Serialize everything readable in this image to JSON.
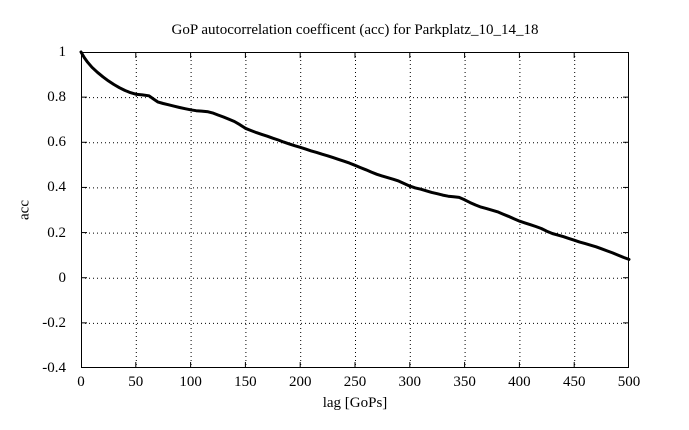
{
  "figure": {
    "title": "GoP autocorrelation coefficent (acc) for Parkplatz_10_14_18",
    "xlabel": "lag [GoPs]",
    "ylabel": "acc"
  },
  "chart_data": {
    "type": "line",
    "title": "GoP autocorrelation coefficent (acc) for Parkplatz_10_14_18",
    "xlabel": "lag [GoPs]",
    "ylabel": "acc",
    "xlim": [
      0,
      500
    ],
    "ylim": [
      -0.4,
      1
    ],
    "xticks": [
      0,
      50,
      100,
      150,
      200,
      250,
      300,
      350,
      400,
      450,
      500
    ],
    "xtick_labels": [
      "0",
      "50",
      "100",
      "150",
      "200",
      "250",
      "300",
      "350",
      "400",
      "450",
      "500"
    ],
    "yticks": [
      -0.4,
      -0.2,
      0,
      0.2,
      0.4,
      0.6,
      0.8,
      1
    ],
    "ytick_labels": [
      "-0.4",
      "-0.2",
      "0",
      "0.2",
      "0.4",
      "0.6",
      "0.8",
      "1"
    ],
    "grid": true,
    "grid_style": "dotted",
    "legend": "none",
    "background": "#ffffff",
    "line_color": "#000000",
    "line_width": 3,
    "series": [
      {
        "name": "acc",
        "points": [
          [
            0,
            1.0
          ],
          [
            3,
            0.975
          ],
          [
            6,
            0.955
          ],
          [
            10,
            0.932
          ],
          [
            15,
            0.91
          ],
          [
            20,
            0.89
          ],
          [
            25,
            0.872
          ],
          [
            30,
            0.856
          ],
          [
            35,
            0.842
          ],
          [
            40,
            0.83
          ],
          [
            45,
            0.82
          ],
          [
            50,
            0.813
          ],
          [
            56,
            0.81
          ],
          [
            62,
            0.806
          ],
          [
            66,
            0.792
          ],
          [
            70,
            0.779
          ],
          [
            75,
            0.772
          ],
          [
            80,
            0.766
          ],
          [
            85,
            0.76
          ],
          [
            90,
            0.754
          ],
          [
            95,
            0.749
          ],
          [
            100,
            0.744
          ],
          [
            105,
            0.74
          ],
          [
            110,
            0.738
          ],
          [
            116,
            0.735
          ],
          [
            120,
            0.73
          ],
          [
            125,
            0.721
          ],
          [
            130,
            0.712
          ],
          [
            135,
            0.702
          ],
          [
            140,
            0.692
          ],
          [
            145,
            0.678
          ],
          [
            150,
            0.662
          ],
          [
            155,
            0.652
          ],
          [
            160,
            0.643
          ],
          [
            165,
            0.635
          ],
          [
            170,
            0.627
          ],
          [
            175,
            0.618
          ],
          [
            180,
            0.61
          ],
          [
            185,
            0.601
          ],
          [
            190,
            0.593
          ],
          [
            195,
            0.585
          ],
          [
            200,
            0.578
          ],
          [
            205,
            0.57
          ],
          [
            210,
            0.562
          ],
          [
            215,
            0.555
          ],
          [
            220,
            0.547
          ],
          [
            225,
            0.54
          ],
          [
            230,
            0.532
          ],
          [
            235,
            0.524
          ],
          [
            240,
            0.516
          ],
          [
            245,
            0.508
          ],
          [
            250,
            0.498
          ],
          [
            255,
            0.488
          ],
          [
            260,
            0.478
          ],
          [
            265,
            0.468
          ],
          [
            270,
            0.458
          ],
          [
            275,
            0.45
          ],
          [
            280,
            0.443
          ],
          [
            285,
            0.436
          ],
          [
            290,
            0.428
          ],
          [
            295,
            0.417
          ],
          [
            300,
            0.406
          ],
          [
            305,
            0.398
          ],
          [
            310,
            0.392
          ],
          [
            315,
            0.385
          ],
          [
            320,
            0.378
          ],
          [
            325,
            0.372
          ],
          [
            330,
            0.366
          ],
          [
            335,
            0.361
          ],
          [
            340,
            0.359
          ],
          [
            345,
            0.356
          ],
          [
            350,
            0.345
          ],
          [
            355,
            0.333
          ],
          [
            360,
            0.322
          ],
          [
            365,
            0.313
          ],
          [
            370,
            0.306
          ],
          [
            375,
            0.299
          ],
          [
            380,
            0.292
          ],
          [
            385,
            0.282
          ],
          [
            390,
            0.272
          ],
          [
            395,
            0.261
          ],
          [
            400,
            0.251
          ],
          [
            405,
            0.243
          ],
          [
            410,
            0.235
          ],
          [
            415,
            0.227
          ],
          [
            420,
            0.218
          ],
          [
            425,
            0.206
          ],
          [
            430,
            0.196
          ],
          [
            435,
            0.189
          ],
          [
            440,
            0.182
          ],
          [
            445,
            0.174
          ],
          [
            450,
            0.166
          ],
          [
            455,
            0.158
          ],
          [
            460,
            0.151
          ],
          [
            465,
            0.144
          ],
          [
            470,
            0.137
          ],
          [
            475,
            0.128
          ],
          [
            480,
            0.119
          ],
          [
            485,
            0.11
          ],
          [
            490,
            0.1
          ],
          [
            495,
            0.09
          ],
          [
            500,
            0.081
          ]
        ]
      }
    ]
  }
}
